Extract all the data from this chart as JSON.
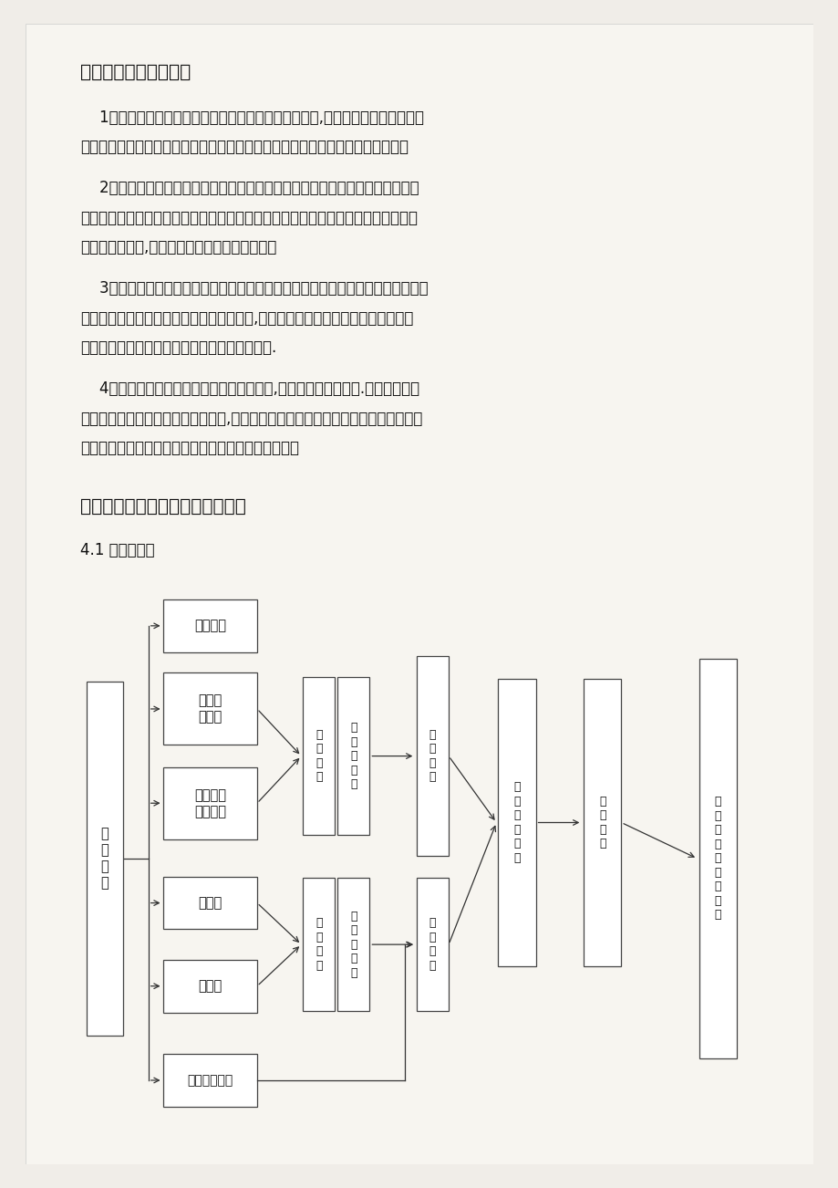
{
  "bg_color": "#f0ede8",
  "page_color": "#f7f5f0",
  "text_color": "#1a1a1a",
  "section3_title": "三、施工工期保证措施",
  "para1_lines": [
    "    1、选调精干的工程技术管理人员组成工程项目经理部,对工程施工实行计划、组",
    "织、协调、控制、监督和指挥职能，同时选派出技术硬、能吃苦耐劳的施工队伍。"
  ],
  "para2_lines": [
    "    2、在施工中以总工期为目标，以阶段控制为保证，运用企业内的有利条件，采",
    "取动态管理、责任承包，并对施工班组实行阶段工期和总工期奖罚制度，使施工组织",
    "科学化、合理化,确保阶段计划按期或提前完成。"
  ],
  "para3_lines": [
    "    3、推行全面计划管理，认真编制切实可行的工程总进度，网络计划和相应的月、",
    "旬、周施工作业计划，使施工生产上下协调,长短计划衔接。坚持日平衡，周调度，",
    "确保月计划的实施，从而保证工程总工期的实现."
  ],
  "para4_lines": [
    "    4、加强施工材料计划管理与采购管理力度,确保按计划进度实施.各专业技术人",
    "员及时准确地提出材料设备需用计划,根据总体进度安排提出材料、设备的进场时间。",
    "并经常与材料采购部门保持联系，确保材料按时提供。"
  ],
  "section4_title": "四、主要项目施工方法及技术措施",
  "section4_sub": "4.1 工艺流程："
}
